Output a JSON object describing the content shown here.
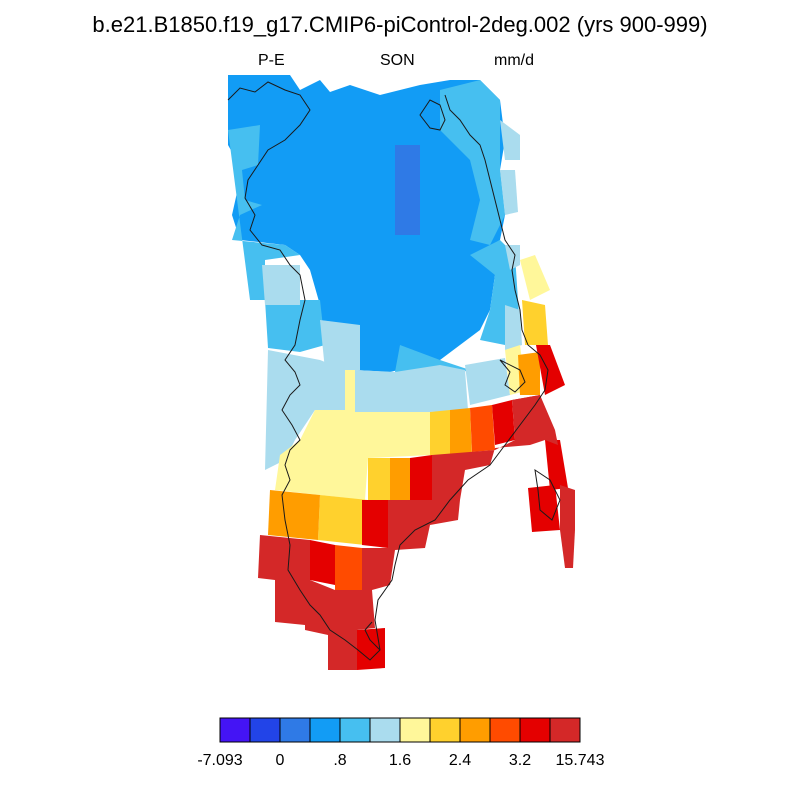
{
  "header": {
    "title": "b.e21.B1850.f19_g17.CMIP6-piControl-2deg.002 (yrs 900-999)",
    "left_label": "P-E",
    "center_label": "SON",
    "right_label": "mm/d"
  },
  "colorbar": {
    "colors": [
      "#4414f5",
      "#2244e8",
      "#2f7ae6",
      "#129cf5",
      "#46bff0",
      "#aadcee",
      "#fff79a",
      "#ffd12d",
      "#ff9d00",
      "#ff4b00",
      "#e40000",
      "#d42828"
    ],
    "tick_labels": [
      "-7.093",
      "0",
      ".8",
      "1.6",
      "2.4",
      "3.2",
      "15.743"
    ]
  },
  "map": {
    "region": "Greenland",
    "variable": "P-E",
    "season": "SON",
    "units": "mm/d",
    "color_scale": "categorical 12-bin",
    "coastline": true
  }
}
